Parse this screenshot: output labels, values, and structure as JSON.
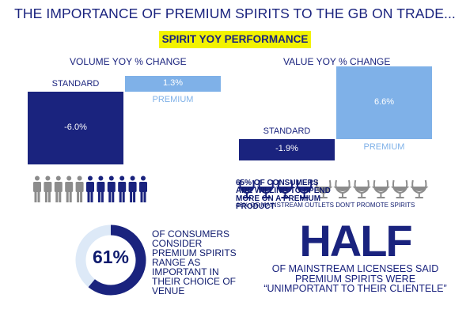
{
  "title": "THE IMPORTANCE OF PREMIUM SPIRITS TO THE GB ON TRADE...",
  "subtitle": "SPIRIT YOY PERFORMANCE",
  "colors": {
    "standard": "#1a237e",
    "premium": "#7fb1e8",
    "grey": "#8c8c8c",
    "highlight": "#f2f200",
    "donut_bg": "#dde9f7"
  },
  "chart_data": [
    {
      "type": "bar",
      "title": "VOLUME YOY % CHANGE",
      "categories": [
        "STANDARD",
        "PREMIUM"
      ],
      "values": [
        -6.0,
        1.3
      ],
      "value_labels": [
        "-6.0%",
        "1.3%"
      ]
    },
    {
      "type": "bar",
      "title": "VALUE YOY % CHANGE",
      "categories": [
        "STANDARD",
        "PREMIUM"
      ],
      "values": [
        -1.9,
        6.6
      ],
      "value_labels": [
        "-1.9%",
        "6.6%"
      ]
    }
  ],
  "stats": {
    "people": {
      "total": 11,
      "highlighted_from": 5,
      "text": "65% OF CONSUMERS ARE WILLING TO SPEND MORE ON A PREMIUM PRODUCT"
    },
    "glasses": {
      "total": 10,
      "highlighted": 4,
      "text": "46% OF MAINSTREAM OUTLETS DON'T PROMOTE SPIRITS"
    },
    "donut": {
      "percent": 61,
      "label": "61%",
      "text": "OF CONSUMERS CONSIDER PREMIUM SPIRITS RANGE AS IMPORTANT IN THEIR CHOICE OF VENUE"
    },
    "half": {
      "headline": "HALF",
      "text": "OF MAINSTREAM LICENSEES SAID PREMIUM SPIRITS WERE “UNIMPORTANT TO THEIR CLIENTELE”"
    }
  }
}
